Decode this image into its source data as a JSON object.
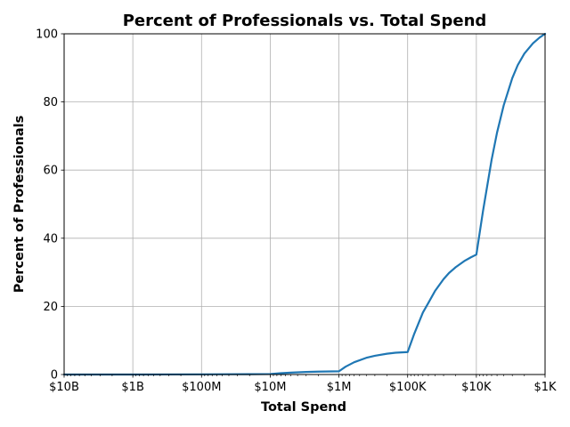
{
  "chart_data": {
    "type": "line",
    "title": "Percent of Professionals vs. Total Spend",
    "xlabel": "Total Spend",
    "ylabel": "Percent of Professionals",
    "x_scale": "log",
    "x_reversed": true,
    "x_unit": "USD",
    "xlim": [
      10000000000,
      1000
    ],
    "ylim": [
      0,
      100
    ],
    "grid": true,
    "x_ticks": [
      {
        "value": 10000000000,
        "label": "$10B"
      },
      {
        "value": 1000000000,
        "label": "$1B"
      },
      {
        "value": 100000000,
        "label": "$100M"
      },
      {
        "value": 10000000,
        "label": "$10M"
      },
      {
        "value": 1000000,
        "label": "$1M"
      },
      {
        "value": 100000,
        "label": "$100K"
      },
      {
        "value": 10000,
        "label": "$10K"
      },
      {
        "value": 1000,
        "label": "$1K"
      }
    ],
    "y_ticks": [
      {
        "value": 0,
        "label": "0"
      },
      {
        "value": 20,
        "label": "20"
      },
      {
        "value": 40,
        "label": "40"
      },
      {
        "value": 60,
        "label": "60"
      },
      {
        "value": 80,
        "label": "80"
      },
      {
        "value": 100,
        "label": "100"
      }
    ],
    "series": [
      {
        "color": "#1f77b4",
        "x": [
          10000000000,
          1000000000,
          100000000,
          20000000,
          10000000,
          7000000,
          5000000,
          3000000,
          2000000,
          1000000,
          800000,
          600000,
          400000,
          300000,
          200000,
          150000,
          100000,
          80000,
          60000,
          50000,
          40000,
          30000,
          25000,
          20000,
          15000,
          12000,
          10000,
          8000,
          6000,
          5000,
          4000,
          3000,
          2500,
          2000,
          1500,
          1200,
          1000
        ],
        "y": [
          0.0,
          0.0,
          0.05,
          0.1,
          0.15,
          0.4,
          0.55,
          0.75,
          0.85,
          0.95,
          2.3,
          3.6,
          4.9,
          5.5,
          6.1,
          6.4,
          6.6,
          12.0,
          18.2,
          21.0,
          24.5,
          28.0,
          29.8,
          31.5,
          33.3,
          34.4,
          35.2,
          48.0,
          63.0,
          71.0,
          79.0,
          87.0,
          90.8,
          94.2,
          97.2,
          98.9,
          100.0
        ]
      }
    ]
  }
}
